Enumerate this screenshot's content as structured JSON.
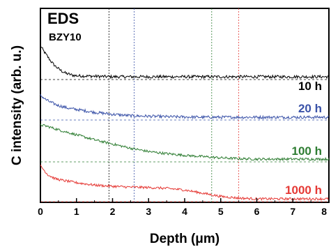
{
  "chart_data": {
    "type": "line",
    "title": "EDS",
    "subtitle": "BZY10",
    "xlabel": "Depth (μm)",
    "ylabel": "C intensity (arb. u.)",
    "xlim": [
      0,
      8
    ],
    "x_ticks": [
      "0",
      "1",
      "2",
      "3",
      "4",
      "5",
      "6",
      "7",
      "8"
    ],
    "grid": false,
    "series": [
      {
        "name": "10 h",
        "color": "#000000",
        "baseline_y": 0.0,
        "interface_x": 1.9,
        "points": [
          [
            0.0,
            0.62
          ],
          [
            0.1,
            0.5
          ],
          [
            0.2,
            0.4
          ],
          [
            0.3,
            0.3
          ],
          [
            0.4,
            0.22
          ],
          [
            0.5,
            0.16
          ],
          [
            0.6,
            0.11
          ],
          [
            0.7,
            0.07
          ],
          [
            0.8,
            0.05
          ],
          [
            0.9,
            0.03
          ],
          [
            1.0,
            0.02
          ],
          [
            1.5,
            0.01
          ],
          [
            2.0,
            0.0
          ],
          [
            8.0,
            0.0
          ]
        ]
      },
      {
        "name": "20 h",
        "color": "#3a52a8",
        "baseline_y": 0.0,
        "interface_x": 2.6,
        "points": [
          [
            0.0,
            0.45
          ],
          [
            0.15,
            0.36
          ],
          [
            0.3,
            0.3
          ],
          [
            0.5,
            0.24
          ],
          [
            0.8,
            0.18
          ],
          [
            1.0,
            0.16
          ],
          [
            1.5,
            0.1
          ],
          [
            2.0,
            0.06
          ],
          [
            2.5,
            0.03
          ],
          [
            3.0,
            0.02
          ],
          [
            3.5,
            0.01
          ],
          [
            4.5,
            0.0
          ],
          [
            8.0,
            0.0
          ]
        ]
      },
      {
        "name": "100 h",
        "color": "#2e7d32",
        "baseline_y": 0.0,
        "interface_x": 4.75,
        "points": [
          [
            0.0,
            0.82
          ],
          [
            0.2,
            0.78
          ],
          [
            0.5,
            0.7
          ],
          [
            1.0,
            0.58
          ],
          [
            1.5,
            0.46
          ],
          [
            2.0,
            0.36
          ],
          [
            2.5,
            0.26
          ],
          [
            3.0,
            0.18
          ],
          [
            3.5,
            0.13
          ],
          [
            4.0,
            0.09
          ],
          [
            4.5,
            0.06
          ],
          [
            5.0,
            0.03
          ],
          [
            5.5,
            0.01
          ],
          [
            6.0,
            0.0
          ],
          [
            8.0,
            0.0
          ]
        ]
      },
      {
        "name": "1000 h",
        "color": "#e53935",
        "baseline_y": 0.0,
        "interface_x": 5.5,
        "points": [
          [
            0.0,
            0.82
          ],
          [
            0.2,
            0.6
          ],
          [
            0.4,
            0.5
          ],
          [
            0.6,
            0.46
          ],
          [
            1.0,
            0.4
          ],
          [
            1.5,
            0.34
          ],
          [
            2.0,
            0.31
          ],
          [
            2.5,
            0.29
          ],
          [
            3.0,
            0.28
          ],
          [
            3.5,
            0.26
          ],
          [
            4.0,
            0.22
          ],
          [
            4.5,
            0.14
          ],
          [
            5.0,
            0.06
          ],
          [
            5.5,
            0.02
          ],
          [
            6.0,
            0.0
          ],
          [
            8.0,
            0.0
          ]
        ]
      }
    ]
  }
}
